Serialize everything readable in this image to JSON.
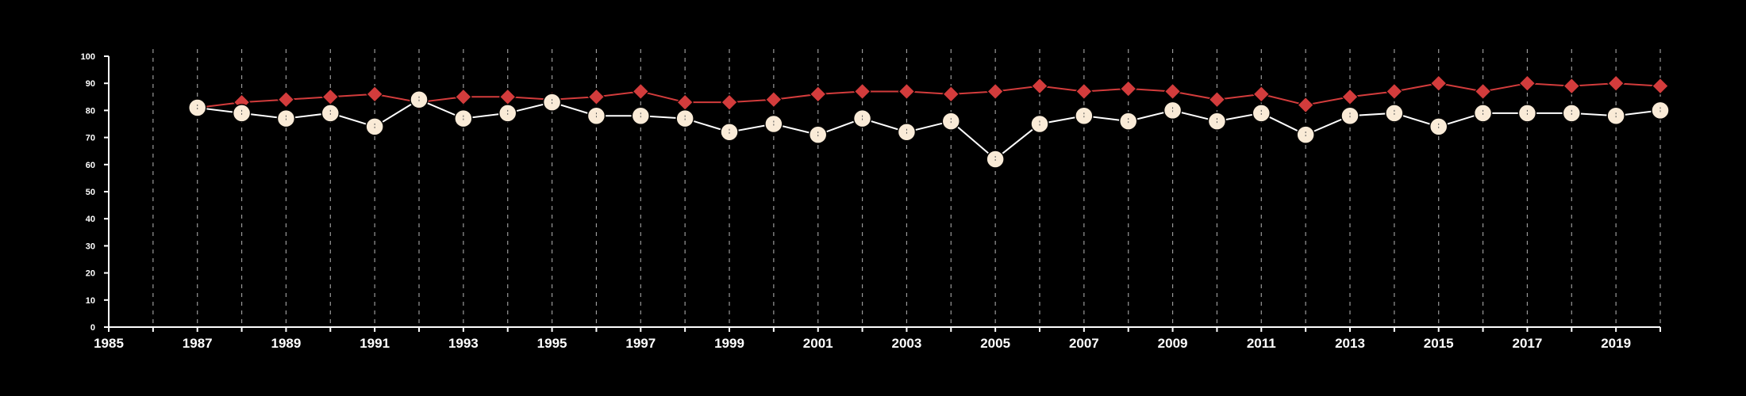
{
  "chart_data": {
    "type": "line",
    "title": "",
    "xlabel": "",
    "ylabel": "",
    "xlim": [
      1985,
      2020
    ],
    "ylim": [
      0,
      100
    ],
    "x_ticks": [
      1985,
      1987,
      1989,
      1991,
      1993,
      1995,
      1997,
      1999,
      2001,
      2003,
      2005,
      2007,
      2009,
      2011,
      2013,
      2015,
      2017,
      2019
    ],
    "y_ticks": [
      0,
      10,
      20,
      30,
      40,
      50,
      60,
      70,
      80,
      90,
      100
    ],
    "vertical_grid": true,
    "horizontal_grid": false,
    "x": [
      1987,
      1988,
      1989,
      1990,
      1991,
      1992,
      1993,
      1994,
      1995,
      1996,
      1997,
      1998,
      1999,
      2000,
      2001,
      2002,
      2003,
      2004,
      2005,
      2006,
      2007,
      2008,
      2009,
      2010,
      2011,
      2012,
      2013,
      2014,
      2015,
      2016,
      2017,
      2018,
      2019,
      2020
    ],
    "series": [
      {
        "marker": "diamond",
        "color": "#d33c3c",
        "values": [
          81,
          83,
          84,
          85,
          86,
          83,
          85,
          85,
          84,
          85,
          87,
          83,
          83,
          84,
          86,
          87,
          87,
          86,
          87,
          89,
          87,
          88,
          87,
          84,
          86,
          82,
          85,
          87,
          90,
          87,
          90,
          89,
          90,
          89
        ]
      },
      {
        "marker": "circle",
        "color": "#faebd7",
        "line_color": "#ffffff",
        "values": [
          81,
          79,
          77,
          79,
          74,
          84,
          77,
          79,
          83,
          78,
          78,
          77,
          72,
          75,
          71,
          77,
          72,
          76,
          62,
          75,
          78,
          76,
          80,
          76,
          79,
          71,
          78,
          79,
          74,
          79,
          79,
          79,
          78,
          80
        ]
      }
    ]
  }
}
